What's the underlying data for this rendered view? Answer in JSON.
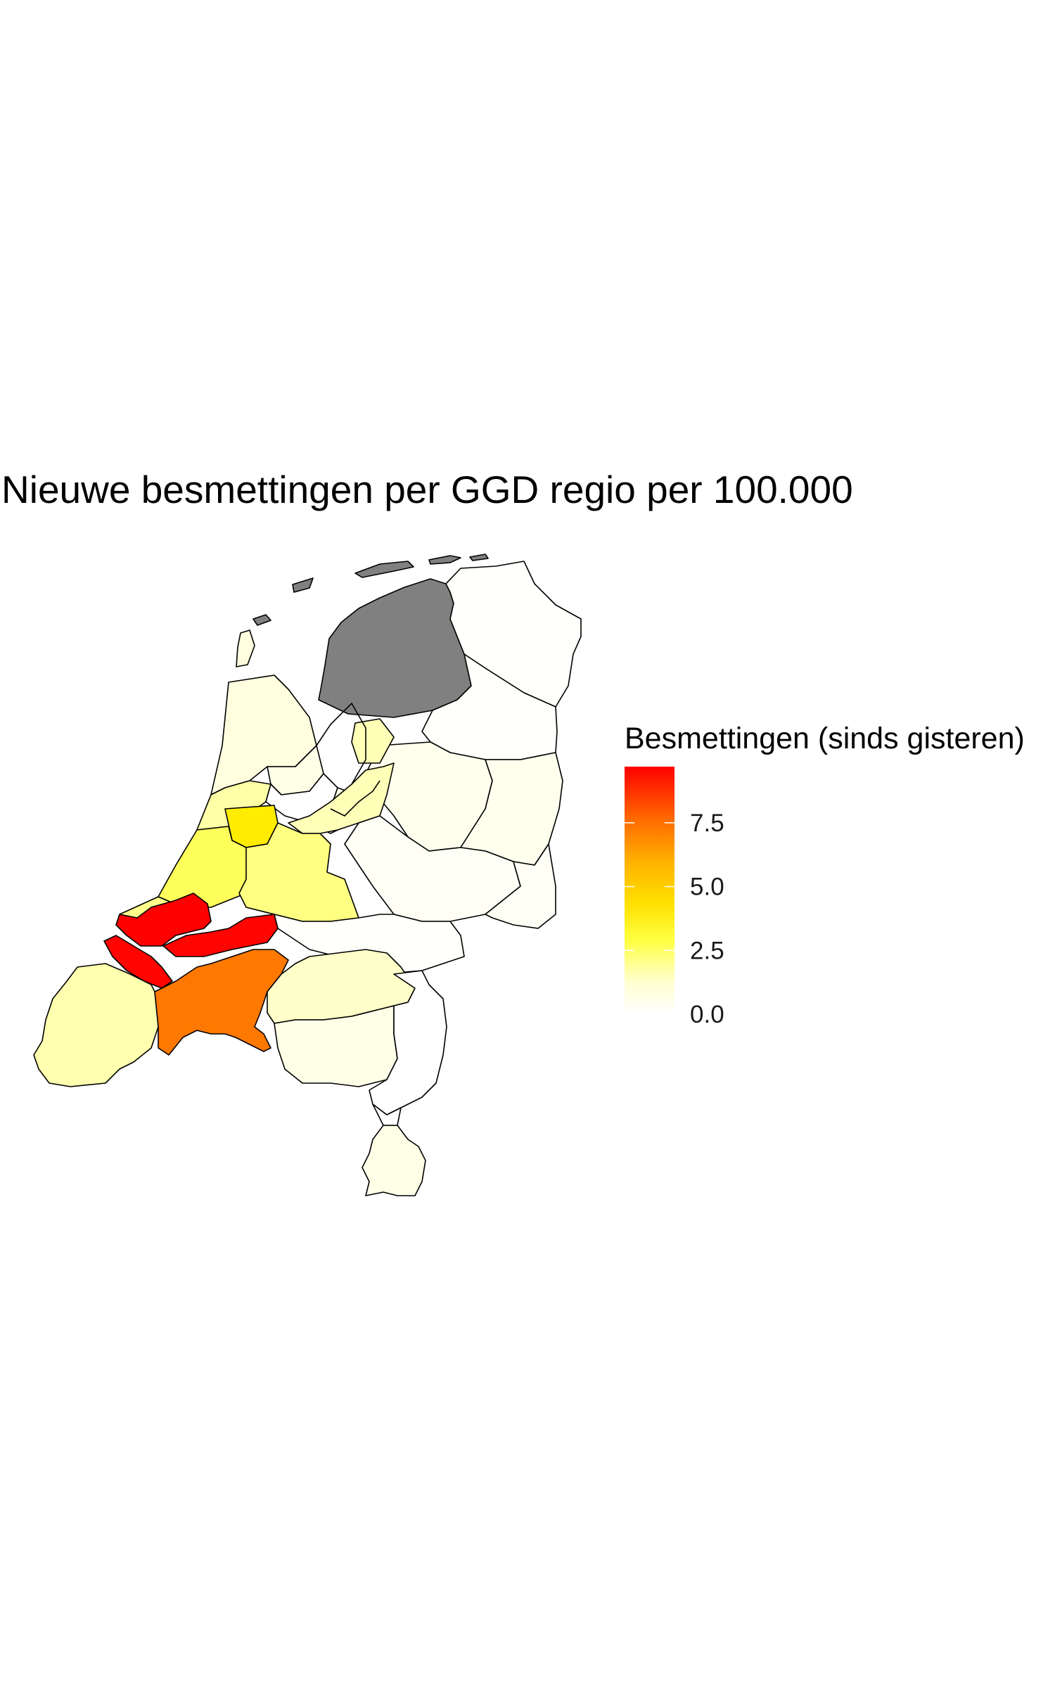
{
  "title": "Nieuwe besmettingen per GGD regio per 100.000",
  "legend": {
    "title": "Besmettingen (sinds gisteren)",
    "min": 0,
    "max": 9.7,
    "ticks": [
      {
        "value": 0.0,
        "label": "0.0"
      },
      {
        "value": 2.5,
        "label": "2.5"
      },
      {
        "value": 5.0,
        "label": "5.0"
      },
      {
        "value": 7.5,
        "label": "7.5"
      }
    ],
    "colors": {
      "low": "#ffffff",
      "mid": "#ffff00",
      "high": "#ff0000",
      "na": "#808080",
      "border": "#000000"
    }
  },
  "chart_data": {
    "type": "choropleth",
    "title": "Nieuwe besmettingen per GGD regio per 100.000",
    "legend_title": "Besmettingen (sinds gisteren)",
    "scale": {
      "min": 0,
      "max": 9.7,
      "ticks": [
        0.0,
        2.5,
        5.0,
        7.5
      ]
    },
    "regions": [
      {
        "id": "fryslan",
        "value": null
      },
      {
        "id": "groningen",
        "value": 0.1
      },
      {
        "id": "drenthe",
        "value": 0.1
      },
      {
        "id": "ijsselland",
        "value": 0.3
      },
      {
        "id": "twente",
        "value": 0.3
      },
      {
        "id": "noord-holland-noord",
        "value": 0.5
      },
      {
        "id": "zaanstreek-waterland",
        "value": 0.4
      },
      {
        "id": "amsterdam",
        "value": 0.0
      },
      {
        "id": "gooi-vechtstreek",
        "value": 0.4
      },
      {
        "id": "flevoland",
        "value": 1.0
      },
      {
        "id": "kennemerland",
        "value": 1.2
      },
      {
        "id": "hollands-midden",
        "value": 2.0
      },
      {
        "id": "haaglanden",
        "value": 1.5
      },
      {
        "id": "rotterdam-rijnmond",
        "value": 9.7
      },
      {
        "id": "zuid-holland-zuid",
        "value": 9.6
      },
      {
        "id": "utrecht-west",
        "value": 3.4
      },
      {
        "id": "utrecht",
        "value": 1.6
      },
      {
        "id": "noord-oost-gelderland",
        "value": 0.2
      },
      {
        "id": "gelderland-midden",
        "value": 0.2
      },
      {
        "id": "gelderland-zuid",
        "value": 0.1
      },
      {
        "id": "west-brabant",
        "value": 6.5
      },
      {
        "id": "hart-voor-brabant",
        "value": 0.8
      },
      {
        "id": "brabant-zuidoost",
        "value": 0.4
      },
      {
        "id": "limburg-noord",
        "value": 0.0
      },
      {
        "id": "zuid-limburg",
        "value": 0.4
      },
      {
        "id": "zeeland",
        "value": 1.1
      },
      {
        "id": "wadden",
        "value": null
      }
    ]
  }
}
